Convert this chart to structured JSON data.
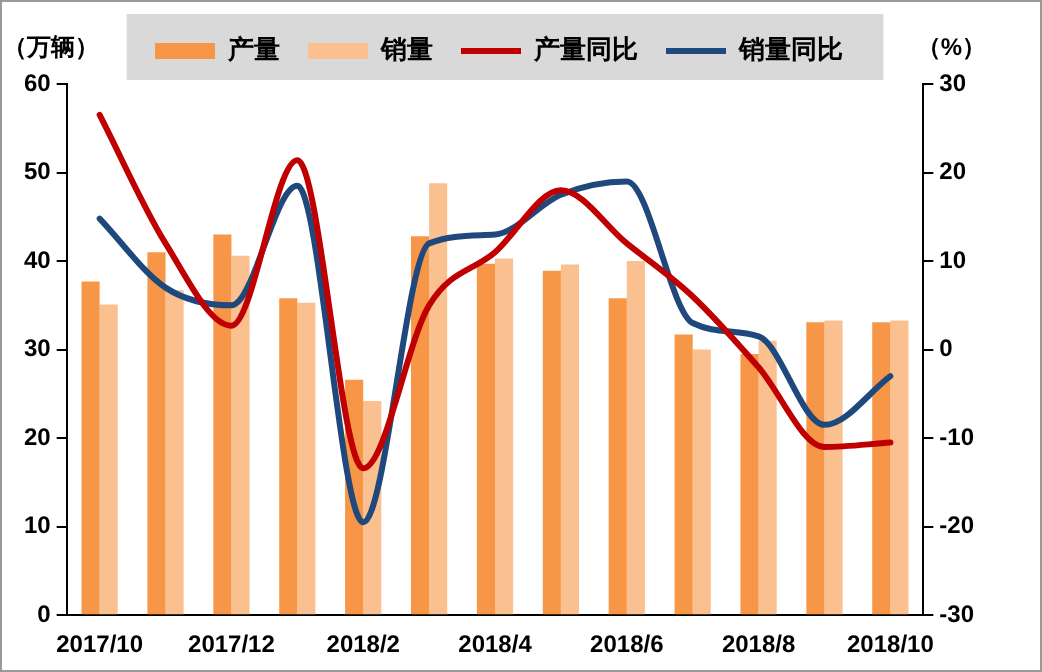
{
  "chart_data": {
    "type": "bar",
    "ylabel": "（万辆）",
    "y2label": "（%）",
    "categories": [
      "2017/10",
      null,
      "2017/12",
      null,
      "2018/2",
      null,
      "2018/4",
      null,
      "2018/6",
      null,
      "2018/8",
      null,
      "2018/10"
    ],
    "series": [
      {
        "name": "产量",
        "color": "#f79646",
        "values": [
          37.7,
          41.0,
          43.0,
          35.8,
          26.6,
          42.8,
          39.7,
          38.9,
          35.8,
          31.7,
          29.5,
          33.1,
          33.1
        ]
      },
      {
        "name": "销量",
        "color": "#fac090",
        "values": [
          35.1,
          36.7,
          40.6,
          35.3,
          24.2,
          48.8,
          40.3,
          39.6,
          40.0,
          30.0,
          31.0,
          33.3,
          33.3
        ]
      },
      {
        "name": "产量同比",
        "type": "line",
        "axis": "y2",
        "color": "#c00000",
        "values": [
          26.5,
          12,
          2.7,
          21.4,
          -13.4,
          5,
          11,
          18,
          12,
          6,
          -2,
          -11,
          -10.5
        ]
      },
      {
        "name": "销量同比",
        "type": "line",
        "axis": "y2",
        "color": "#1f497d",
        "values": [
          14.8,
          7,
          5,
          18.5,
          -19.5,
          12,
          13,
          17.5,
          19,
          3,
          1.5,
          -8.5,
          -3
        ]
      }
    ],
    "ylim": [
      0,
      60
    ],
    "yticks": [
      0,
      10,
      20,
      30,
      40,
      50,
      60
    ],
    "y2lim": [
      -30,
      30
    ],
    "y2ticks": [
      -30,
      -20,
      -10,
      0,
      10,
      20,
      30
    ],
    "legend": "top",
    "grid": false,
    "marker": "none",
    "line_style": "solid"
  }
}
